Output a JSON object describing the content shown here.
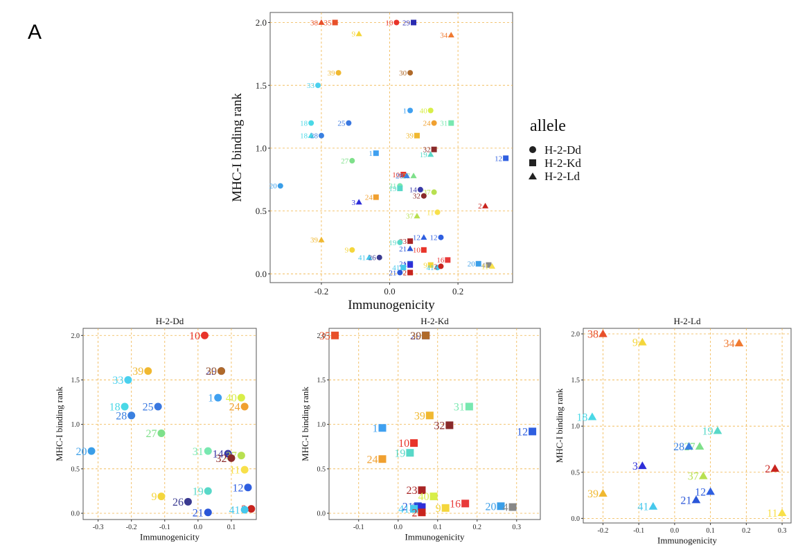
{
  "figure": {
    "panel_letter": "A"
  },
  "legend": {
    "title": "allele",
    "entries": [
      {
        "label": "H-2-Dd",
        "shape": "circle"
      },
      {
        "label": "H-2-Kd",
        "shape": "square"
      },
      {
        "label": "H-2-Ld",
        "shape": "triangle"
      }
    ]
  },
  "colors": {
    "1": "#3fa0f0",
    "2": "#c8241e",
    "3": "#2e2ed8",
    "9": "#f4d63c",
    "10": "#e8342a",
    "11": "#f8e04a",
    "12": "#2f5fe0",
    "14": "#3a3aa8",
    "16": "#e83a3a",
    "18": "#4ad8e6",
    "19": "#58d8c8",
    "20": "#3a9ee8",
    "21": "#2a56d8",
    "23": "#a82424",
    "24": "#f0a030",
    "25": "#3a78e0",
    "26": "#3a3a90",
    "27": "#7ee08a",
    "28": "#3a80e0",
    "29": "#2a2ab0",
    "30": "#b06a2a",
    "31": "#78e8b0",
    "32": "#8a2a2a",
    "33": "#4ad0ee",
    "34": "#f07a30",
    "35": "#e8502a",
    "37": "#b8e050",
    "38": "#e8502a",
    "39": "#f0b830",
    "40": "#d8ee48",
    "41": "#46c8ec"
  },
  "chart_data": [
    {
      "id": "combined",
      "type": "scatter",
      "title": "",
      "xlabel": "Immunogenicity",
      "ylabel": "MHC-I binding rank",
      "xlim": [
        -0.35,
        0.36
      ],
      "ylim": [
        -0.07,
        2.08
      ],
      "xticks": [
        -0.2,
        0.0,
        0.2
      ],
      "xtick_labels": [
        "-0.2",
        "0.0",
        "0.2"
      ],
      "yticks": [
        0.0,
        0.5,
        1.0,
        1.5,
        2.0
      ],
      "ytick_labels": [
        "0.0",
        "0.5",
        "1.0",
        "1.5",
        "2.0"
      ],
      "grid": true,
      "legend": "right",
      "points": [
        {
          "x": -0.2,
          "y": 2.0,
          "label": "38",
          "shape": "triangle"
        },
        {
          "x": -0.16,
          "y": 2.0,
          "label": "35",
          "shape": "square"
        },
        {
          "x": -0.09,
          "y": 1.91,
          "label": "9",
          "shape": "triangle"
        },
        {
          "x": 0.02,
          "y": 2.0,
          "label": "10",
          "shape": "circle"
        },
        {
          "x": 0.07,
          "y": 2.0,
          "label": "29",
          "shape": "square"
        },
        {
          "x": 0.18,
          "y": 1.9,
          "label": "34",
          "shape": "triangle"
        },
        {
          "x": -0.15,
          "y": 1.6,
          "label": "39",
          "shape": "circle"
        },
        {
          "x": 0.06,
          "y": 1.6,
          "label": "30",
          "shape": "circle"
        },
        {
          "x": -0.21,
          "y": 1.5,
          "label": "33",
          "shape": "circle"
        },
        {
          "x": 0.06,
          "y": 1.3,
          "label": "1",
          "shape": "circle"
        },
        {
          "x": 0.12,
          "y": 1.3,
          "label": "40",
          "shape": "circle"
        },
        {
          "x": 0.13,
          "y": 1.2,
          "label": "24",
          "shape": "circle"
        },
        {
          "x": 0.18,
          "y": 1.2,
          "label": "31",
          "shape": "square"
        },
        {
          "x": -0.23,
          "y": 1.2,
          "label": "18",
          "shape": "circle"
        },
        {
          "x": -0.12,
          "y": 1.2,
          "label": "25",
          "shape": "circle"
        },
        {
          "x": -0.23,
          "y": 1.1,
          "label": "18",
          "shape": "triangle"
        },
        {
          "x": -0.2,
          "y": 1.1,
          "label": "28",
          "shape": "circle"
        },
        {
          "x": 0.08,
          "y": 1.1,
          "label": "39",
          "shape": "square"
        },
        {
          "x": 0.13,
          "y": 0.99,
          "label": "32",
          "shape": "square"
        },
        {
          "x": -0.04,
          "y": 0.96,
          "label": "1",
          "shape": "square"
        },
        {
          "x": 0.12,
          "y": 0.95,
          "label": "19",
          "shape": "triangle"
        },
        {
          "x": -0.11,
          "y": 0.9,
          "label": "27",
          "shape": "circle"
        },
        {
          "x": 0.34,
          "y": 0.92,
          "label": "12",
          "shape": "square"
        },
        {
          "x": 0.04,
          "y": 0.79,
          "label": "10",
          "shape": "square"
        },
        {
          "x": 0.07,
          "y": 0.78,
          "label": "27",
          "shape": "triangle"
        },
        {
          "x": 0.05,
          "y": 0.78,
          "label": "28",
          "shape": "triangle"
        },
        {
          "x": -0.32,
          "y": 0.7,
          "label": "20",
          "shape": "circle"
        },
        {
          "x": 0.03,
          "y": 0.7,
          "label": "31",
          "shape": "circle"
        },
        {
          "x": 0.03,
          "y": 0.68,
          "label": "19",
          "shape": "square"
        },
        {
          "x": 0.09,
          "y": 0.67,
          "label": "14",
          "shape": "circle"
        },
        {
          "x": 0.13,
          "y": 0.65,
          "label": "37",
          "shape": "circle"
        },
        {
          "x": 0.1,
          "y": 0.62,
          "label": "32",
          "shape": "circle"
        },
        {
          "x": -0.04,
          "y": 0.61,
          "label": "24",
          "shape": "square"
        },
        {
          "x": -0.09,
          "y": 0.57,
          "label": "3",
          "shape": "triangle"
        },
        {
          "x": 0.28,
          "y": 0.54,
          "label": "2",
          "shape": "triangle"
        },
        {
          "x": 0.14,
          "y": 0.49,
          "label": "11",
          "shape": "circle"
        },
        {
          "x": 0.08,
          "y": 0.46,
          "label": "37",
          "shape": "triangle"
        },
        {
          "x": 0.06,
          "y": 0.26,
          "label": "23",
          "shape": "square"
        },
        {
          "x": 0.1,
          "y": 0.29,
          "label": "12",
          "shape": "triangle"
        },
        {
          "x": 0.15,
          "y": 0.29,
          "label": "12",
          "shape": "circle"
        },
        {
          "x": -0.2,
          "y": 0.27,
          "label": "39",
          "shape": "triangle"
        },
        {
          "x": 0.03,
          "y": 0.25,
          "label": "19",
          "shape": "circle"
        },
        {
          "x": 0.1,
          "y": 0.19,
          "label": "10",
          "shape": "square"
        },
        {
          "x": -0.11,
          "y": 0.19,
          "label": "9",
          "shape": "circle"
        },
        {
          "x": 0.06,
          "y": 0.2,
          "label": "21",
          "shape": "triangle"
        },
        {
          "x": -0.06,
          "y": 0.13,
          "label": "41",
          "shape": "triangle"
        },
        {
          "x": -0.03,
          "y": 0.13,
          "label": "26",
          "shape": "circle"
        },
        {
          "x": 0.17,
          "y": 0.11,
          "label": "16",
          "shape": "square"
        },
        {
          "x": 0.26,
          "y": 0.08,
          "label": "20",
          "shape": "square"
        },
        {
          "x": 0.29,
          "y": 0.07,
          "label": "4",
          "shape": "square"
        },
        {
          "x": 0.3,
          "y": 0.06,
          "label": "11",
          "shape": "triangle"
        },
        {
          "x": 0.06,
          "y": 0.08,
          "label": "21",
          "shape": "square"
        },
        {
          "x": 0.06,
          "y": 0.07,
          "label": "3",
          "shape": "square"
        },
        {
          "x": 0.12,
          "y": 0.07,
          "label": "9",
          "shape": "square"
        },
        {
          "x": 0.14,
          "y": 0.05,
          "label": "41",
          "shape": "circle"
        },
        {
          "x": 0.15,
          "y": 0.06,
          "label": "2",
          "shape": "circle"
        },
        {
          "x": 0.04,
          "y": 0.05,
          "label": "41",
          "shape": "square"
        },
        {
          "x": 0.03,
          "y": 0.01,
          "label": "21",
          "shape": "circle"
        },
        {
          "x": 0.06,
          "y": 0.01,
          "label": "2",
          "shape": "square"
        }
      ]
    },
    {
      "id": "dd",
      "type": "scatter",
      "title": "H-2-Dd",
      "xlabel": "Immunogenicity",
      "ylabel": "MHC-I binding rank",
      "xlim": [
        -0.345,
        0.175
      ],
      "ylim": [
        -0.07,
        2.08
      ],
      "xticks": [
        -0.3,
        -0.2,
        -0.1,
        0.0,
        0.1
      ],
      "xtick_labels": [
        "-0.3",
        "-0.2",
        "-0.1",
        "0.0",
        "0.1"
      ],
      "yticks": [
        0.0,
        0.5,
        1.0,
        1.5,
        2.0
      ],
      "ytick_labels": [
        "0.0",
        "0.5",
        "1.0",
        "1.5",
        "2.0"
      ],
      "grid": true,
      "points": [
        {
          "x": 0.02,
          "y": 2.0,
          "label": "10",
          "shape": "circle"
        },
        {
          "x": 0.07,
          "y": 1.6,
          "label": "29",
          "shape": "circle"
        },
        {
          "x": 0.07,
          "y": 1.6,
          "label": "30",
          "shape": "circle"
        },
        {
          "x": -0.15,
          "y": 1.6,
          "label": "39",
          "shape": "circle"
        },
        {
          "x": -0.21,
          "y": 1.5,
          "label": "33",
          "shape": "circle"
        },
        {
          "x": 0.06,
          "y": 1.3,
          "label": "1",
          "shape": "circle"
        },
        {
          "x": 0.13,
          "y": 1.3,
          "label": "40",
          "shape": "circle"
        },
        {
          "x": 0.14,
          "y": 1.2,
          "label": "24",
          "shape": "circle"
        },
        {
          "x": -0.22,
          "y": 1.2,
          "label": "18",
          "shape": "circle"
        },
        {
          "x": -0.12,
          "y": 1.2,
          "label": "25",
          "shape": "circle"
        },
        {
          "x": -0.2,
          "y": 1.1,
          "label": "28",
          "shape": "circle"
        },
        {
          "x": -0.11,
          "y": 0.9,
          "label": "27",
          "shape": "circle"
        },
        {
          "x": -0.32,
          "y": 0.7,
          "label": "20",
          "shape": "circle"
        },
        {
          "x": 0.03,
          "y": 0.7,
          "label": "31",
          "shape": "circle"
        },
        {
          "x": 0.09,
          "y": 0.67,
          "label": "14",
          "shape": "circle"
        },
        {
          "x": 0.13,
          "y": 0.65,
          "label": "37",
          "shape": "circle"
        },
        {
          "x": 0.1,
          "y": 0.62,
          "label": "32",
          "shape": "circle"
        },
        {
          "x": 0.14,
          "y": 0.49,
          "label": "11",
          "shape": "circle"
        },
        {
          "x": 0.15,
          "y": 0.29,
          "label": "12",
          "shape": "circle"
        },
        {
          "x": 0.03,
          "y": 0.25,
          "label": "19",
          "shape": "circle"
        },
        {
          "x": -0.11,
          "y": 0.19,
          "label": "9",
          "shape": "circle"
        },
        {
          "x": -0.03,
          "y": 0.13,
          "label": "26",
          "shape": "circle"
        },
        {
          "x": 0.16,
          "y": 0.05,
          "label": "2",
          "shape": "circle"
        },
        {
          "x": 0.14,
          "y": 0.04,
          "label": "41",
          "shape": "circle"
        },
        {
          "x": 0.03,
          "y": 0.01,
          "label": "21",
          "shape": "circle"
        }
      ]
    },
    {
      "id": "kd",
      "type": "scatter",
      "title": "H-2-Kd",
      "xlabel": "Immunogenicity",
      "ylabel": "MHC-I binding rank",
      "xlim": [
        -0.175,
        0.36
      ],
      "ylim": [
        -0.07,
        2.08
      ],
      "xticks": [
        -0.1,
        0.0,
        0.1,
        0.2,
        0.3
      ],
      "xtick_labels": [
        "-0.1",
        "0.0",
        "0.1",
        "0.2",
        "0.3"
      ],
      "yticks": [
        0.0,
        0.5,
        1.0,
        1.5,
        2.0
      ],
      "ytick_labels": [
        "0.0",
        "0.5",
        "1.0",
        "1.5",
        "2.0"
      ],
      "grid": true,
      "points": [
        {
          "x": -0.16,
          "y": 2.0,
          "label": "35",
          "shape": "square"
        },
        {
          "x": 0.07,
          "y": 2.0,
          "label": "29",
          "shape": "square"
        },
        {
          "x": 0.07,
          "y": 2.0,
          "label": "30",
          "shape": "square"
        },
        {
          "x": 0.18,
          "y": 1.2,
          "label": "31",
          "shape": "square"
        },
        {
          "x": 0.08,
          "y": 1.1,
          "label": "39",
          "shape": "square"
        },
        {
          "x": 0.13,
          "y": 0.99,
          "label": "32",
          "shape": "square"
        },
        {
          "x": -0.04,
          "y": 0.96,
          "label": "1",
          "shape": "square"
        },
        {
          "x": 0.34,
          "y": 0.92,
          "label": "12",
          "shape": "square"
        },
        {
          "x": 0.04,
          "y": 0.79,
          "label": "10",
          "shape": "square"
        },
        {
          "x": 0.03,
          "y": 0.68,
          "label": "19",
          "shape": "square"
        },
        {
          "x": -0.04,
          "y": 0.61,
          "label": "24",
          "shape": "square"
        },
        {
          "x": 0.06,
          "y": 0.26,
          "label": "23",
          "shape": "square"
        },
        {
          "x": 0.09,
          "y": 0.19,
          "label": "40",
          "shape": "square"
        },
        {
          "x": 0.17,
          "y": 0.11,
          "label": "16",
          "shape": "square"
        },
        {
          "x": 0.26,
          "y": 0.08,
          "label": "20",
          "shape": "square"
        },
        {
          "x": 0.29,
          "y": 0.07,
          "label": "4",
          "shape": "square"
        },
        {
          "x": 0.12,
          "y": 0.06,
          "label": "9",
          "shape": "square"
        },
        {
          "x": 0.05,
          "y": 0.08,
          "label": "21",
          "shape": "square"
        },
        {
          "x": 0.06,
          "y": 0.07,
          "label": "3",
          "shape": "square"
        },
        {
          "x": 0.04,
          "y": 0.05,
          "label": "41",
          "shape": "square"
        },
        {
          "x": 0.06,
          "y": 0.01,
          "label": "2",
          "shape": "square"
        }
      ]
    },
    {
      "id": "ld",
      "type": "scatter",
      "title": "H-2-Ld",
      "xlabel": "Immunogenicity",
      "ylabel": "MHC-I binding rank",
      "xlim": [
        -0.255,
        0.325
      ],
      "ylim": [
        -0.05,
        2.06
      ],
      "xticks": [
        -0.2,
        -0.1,
        0.0,
        0.1,
        0.2,
        0.3
      ],
      "xtick_labels": [
        "-0.2",
        "-0.1",
        "0.0",
        "0.1",
        "0.2",
        "0.3"
      ],
      "yticks": [
        0.0,
        0.5,
        1.0,
        1.5,
        2.0
      ],
      "ytick_labels": [
        "0.0",
        "0.5",
        "1.0",
        "1.5",
        "2.0"
      ],
      "grid": true,
      "points": [
        {
          "x": -0.2,
          "y": 2.0,
          "label": "38",
          "shape": "triangle"
        },
        {
          "x": -0.09,
          "y": 1.91,
          "label": "9",
          "shape": "triangle"
        },
        {
          "x": 0.18,
          "y": 1.9,
          "label": "34",
          "shape": "triangle"
        },
        {
          "x": -0.23,
          "y": 1.1,
          "label": "18",
          "shape": "triangle"
        },
        {
          "x": 0.12,
          "y": 0.95,
          "label": "19",
          "shape": "triangle"
        },
        {
          "x": 0.07,
          "y": 0.78,
          "label": "27",
          "shape": "triangle"
        },
        {
          "x": 0.04,
          "y": 0.78,
          "label": "28",
          "shape": "triangle"
        },
        {
          "x": -0.09,
          "y": 0.57,
          "label": "3",
          "shape": "triangle"
        },
        {
          "x": 0.28,
          "y": 0.54,
          "label": "2",
          "shape": "triangle"
        },
        {
          "x": 0.08,
          "y": 0.46,
          "label": "37",
          "shape": "triangle"
        },
        {
          "x": 0.1,
          "y": 0.29,
          "label": "12",
          "shape": "triangle"
        },
        {
          "x": -0.2,
          "y": 0.27,
          "label": "39",
          "shape": "triangle"
        },
        {
          "x": 0.06,
          "y": 0.2,
          "label": "21",
          "shape": "triangle"
        },
        {
          "x": -0.06,
          "y": 0.13,
          "label": "41",
          "shape": "triangle"
        },
        {
          "x": 0.3,
          "y": 0.06,
          "label": "11",
          "shape": "triangle"
        }
      ]
    }
  ]
}
